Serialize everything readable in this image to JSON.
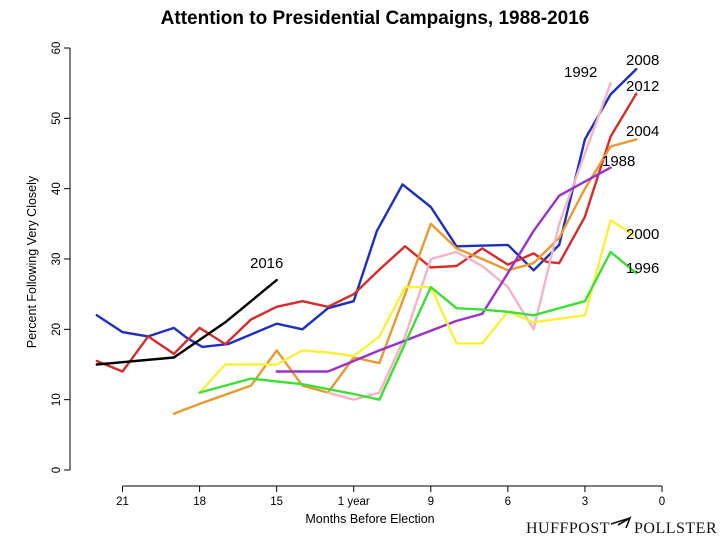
{
  "chart_data": {
    "type": "line",
    "title": "Attention to Presidential Campaigns, 1988-2016",
    "xlabel": "Months Before Election",
    "ylabel": "Percent Following Very Closely",
    "xlim": [
      22.5,
      0
    ],
    "ylim": [
      0,
      60
    ],
    "x_ticks": [
      21,
      18,
      15,
      12,
      9,
      6,
      3,
      0
    ],
    "x_tick_labels": [
      "21",
      "18",
      "15",
      "1 year",
      "9",
      "6",
      "3",
      "0"
    ],
    "y_ticks": [
      0,
      10,
      20,
      30,
      40,
      50,
      60
    ],
    "y_tick_labels": [
      "0",
      "10",
      "20",
      "30",
      "40",
      "50",
      "60"
    ],
    "grid": false,
    "legend": "none",
    "series": [
      {
        "name": "2008",
        "color": "#1c2fbf",
        "x": [
          22,
          21,
          20,
          19,
          18.5,
          17.9,
          16.9,
          15,
          14,
          13,
          12,
          11.1,
          10.1,
          9,
          8,
          6,
          5,
          4,
          3,
          2,
          1
        ],
        "y": [
          22,
          19.6,
          19,
          20.2,
          18.8,
          17.5,
          17.9,
          20.8,
          20,
          23,
          24,
          34,
          40.6,
          37.4,
          31.8,
          32,
          28.4,
          32,
          47,
          53.4,
          57
        ]
      },
      {
        "name": "2012",
        "color": "#d62c2c",
        "x": [
          22,
          21,
          20,
          19,
          18,
          17,
          16,
          15,
          14,
          13,
          12,
          11,
          10,
          9,
          8,
          7,
          6,
          5,
          4.5,
          4,
          3,
          2,
          1
        ],
        "y": [
          15.5,
          14,
          19,
          16.5,
          20.2,
          17.9,
          21.4,
          23.2,
          24,
          23.2,
          25,
          28.5,
          31.8,
          28.8,
          29,
          31.5,
          29.2,
          30.8,
          29.6,
          29.4,
          36,
          47.4,
          53.5
        ]
      },
      {
        "name": "2004",
        "color": "#e89a31",
        "x": [
          19,
          18,
          16,
          15,
          14,
          13,
          12,
          11,
          10,
          9,
          8,
          7,
          6,
          5,
          4,
          3,
          2,
          1
        ],
        "y": [
          8,
          9.4,
          12,
          17,
          12,
          11,
          16,
          15.2,
          25,
          35,
          31.5,
          30,
          28.4,
          29.4,
          33,
          40,
          46,
          47
        ]
      },
      {
        "name": "1992",
        "color": "#f5b3c3",
        "x": [
          13,
          12,
          11,
          10,
          9,
          8,
          7,
          6,
          5,
          4,
          3,
          2
        ],
        "y": [
          11,
          10,
          11,
          19,
          30,
          31,
          29,
          26,
          20,
          35,
          45,
          55
        ]
      },
      {
        "name": "1988",
        "color": "#9b31c7",
        "x": [
          15,
          13,
          12,
          11,
          10,
          9,
          8,
          7,
          6,
          5,
          4,
          3,
          2
        ],
        "y": [
          14,
          14,
          15.5,
          17,
          18.4,
          19.8,
          21.2,
          22.2,
          28,
          34,
          39,
          41,
          43
        ]
      },
      {
        "name": "2000",
        "color": "#f7f13a",
        "x": [
          18,
          17,
          16,
          15,
          14,
          13,
          12,
          11,
          10,
          9,
          8,
          7,
          6,
          5,
          4,
          3,
          2,
          1
        ],
        "y": [
          11,
          15,
          15,
          15,
          17,
          16.7,
          16.2,
          19,
          26,
          26,
          18,
          18,
          22.5,
          21,
          21.5,
          22,
          35.5,
          33.2
        ]
      },
      {
        "name": "1996",
        "color": "#3be035",
        "x": [
          18,
          17,
          16,
          15,
          14,
          13,
          12,
          11,
          10,
          9,
          8,
          7,
          6,
          5,
          4,
          3,
          2,
          1
        ],
        "y": [
          11,
          12,
          13,
          12.6,
          12.2,
          11.5,
          10.8,
          10,
          18,
          26,
          23,
          22.8,
          22.5,
          22,
          23,
          24,
          31,
          28
        ]
      },
      {
        "name": "2016",
        "color": "#000000",
        "x": [
          22,
          19,
          18,
          17,
          16,
          15
        ],
        "y": [
          15,
          16,
          18.5,
          21,
          24,
          27
        ]
      }
    ],
    "labels": [
      {
        "text": "2008",
        "series": "2008"
      },
      {
        "text": "1992",
        "series": "1992"
      },
      {
        "text": "2012",
        "series": "2012"
      },
      {
        "text": "2004",
        "series": "2004"
      },
      {
        "text": "1988",
        "series": "1988"
      },
      {
        "text": "2000",
        "series": "2000"
      },
      {
        "text": "1996",
        "series": "1996"
      },
      {
        "text": "2016",
        "series": "2016"
      }
    ]
  },
  "brand": {
    "left": "HUFFPOST",
    "icon": "arrow-icon",
    "right": "POLLSTER"
  }
}
